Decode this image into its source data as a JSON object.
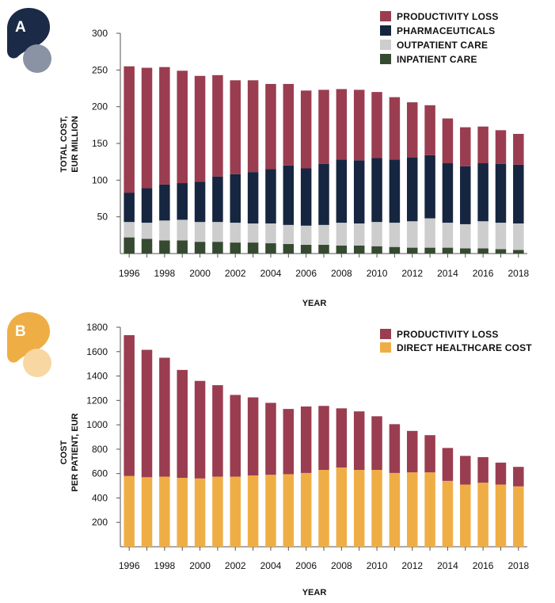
{
  "chart_data": [
    {
      "panel": "A",
      "type": "bar",
      "stacked": true,
      "badge": {
        "letter": "A",
        "color": "#1b2b47",
        "dot_color": "#8a93a3"
      },
      "ylabel_lines": [
        "TOTAL COST,",
        "EUR MILLION"
      ],
      "xlabel": "YEAR",
      "ylim": [
        0,
        300
      ],
      "yticks": [
        50,
        100,
        150,
        200,
        250,
        300
      ],
      "xtick_labels": [
        "1996",
        "1998",
        "2000",
        "2002",
        "2004",
        "2006",
        "2008",
        "2010",
        "2012",
        "2014",
        "2016",
        "2018"
      ],
      "legend_position": "top-right",
      "categories": [
        "1996",
        "1997",
        "1998",
        "1999",
        "2000",
        "2001",
        "2002",
        "2003",
        "2004",
        "2005",
        "2006",
        "2007",
        "2008",
        "2009",
        "2010",
        "2011",
        "2012",
        "2013",
        "2014",
        "2015",
        "2016",
        "2017",
        "2018"
      ],
      "series": [
        {
          "name": "INPATIENT CARE",
          "color": "#354a30",
          "values": [
            22,
            20,
            18,
            18,
            16,
            16,
            15,
            15,
            14,
            13,
            12,
            12,
            11,
            11,
            10,
            9,
            8,
            8,
            8,
            7,
            7,
            6,
            5
          ]
        },
        {
          "name": "OUTPATIENT CARE",
          "color": "#cdcdcd",
          "values": [
            21,
            22,
            27,
            28,
            27,
            27,
            27,
            26,
            27,
            26,
            26,
            27,
            31,
            30,
            33,
            33,
            36,
            40,
            34,
            33,
            37,
            36,
            36
          ]
        },
        {
          "name": "PHARMACEUTICALS",
          "color": "#162640",
          "values": [
            40,
            47,
            49,
            50,
            55,
            62,
            66,
            70,
            74,
            81,
            78,
            83,
            86,
            86,
            87,
            86,
            87,
            86,
            81,
            79,
            79,
            80,
            80
          ]
        },
        {
          "name": "PRODUCTIVITY LOSS",
          "color": "#9a3d50",
          "values": [
            172,
            164,
            160,
            153,
            144,
            138,
            128,
            125,
            116,
            111,
            106,
            101,
            96,
            96,
            90,
            85,
            75,
            68,
            61,
            53,
            50,
            46,
            42
          ]
        }
      ],
      "legend": [
        {
          "name": "PRODUCTIVITY LOSS",
          "color": "#9a3d50"
        },
        {
          "name": "PHARMACEUTICALS",
          "color": "#162640"
        },
        {
          "name": "OUTPATIENT CARE",
          "color": "#cdcdcd"
        },
        {
          "name": "INPATIENT CARE",
          "color": "#354a30"
        }
      ]
    },
    {
      "panel": "B",
      "type": "bar",
      "stacked": true,
      "badge": {
        "letter": "B",
        "color": "#efae45",
        "dot_color": "#f8d7a2"
      },
      "ylabel_lines": [
        "COST",
        "PER PATIENT, EUR"
      ],
      "xlabel": "YEAR",
      "ylim": [
        0,
        1800
      ],
      "yticks": [
        200,
        400,
        600,
        800,
        1000,
        1200,
        1400,
        1600,
        1800
      ],
      "xtick_labels": [
        "1996",
        "1998",
        "2000",
        "2002",
        "2004",
        "2006",
        "2008",
        "2010",
        "2012",
        "2014",
        "2016",
        "2018"
      ],
      "legend_position": "top-right",
      "categories": [
        "1996",
        "1997",
        "1998",
        "1999",
        "2000",
        "2001",
        "2002",
        "2003",
        "2004",
        "2005",
        "2006",
        "2007",
        "2008",
        "2009",
        "2010",
        "2011",
        "2012",
        "2013",
        "2014",
        "2015",
        "2016",
        "2017",
        "2018"
      ],
      "series": [
        {
          "name": "DIRECT HEALTHCARE COST",
          "color": "#efae45",
          "values": [
            580,
            570,
            575,
            565,
            560,
            575,
            575,
            585,
            590,
            595,
            605,
            630,
            650,
            630,
            630,
            605,
            610,
            610,
            540,
            510,
            525,
            510,
            495
          ]
        },
        {
          "name": "PRODUCTIVITY LOSS",
          "color": "#9a3d50",
          "values": [
            1155,
            1045,
            975,
            885,
            800,
            750,
            670,
            640,
            590,
            535,
            545,
            525,
            485,
            480,
            440,
            400,
            340,
            305,
            270,
            235,
            210,
            180,
            160
          ]
        }
      ],
      "legend": [
        {
          "name": "PRODUCTIVITY LOSS",
          "color": "#9a3d50"
        },
        {
          "name": "DIRECT HEALTHCARE COST",
          "color": "#efae45"
        }
      ]
    }
  ]
}
